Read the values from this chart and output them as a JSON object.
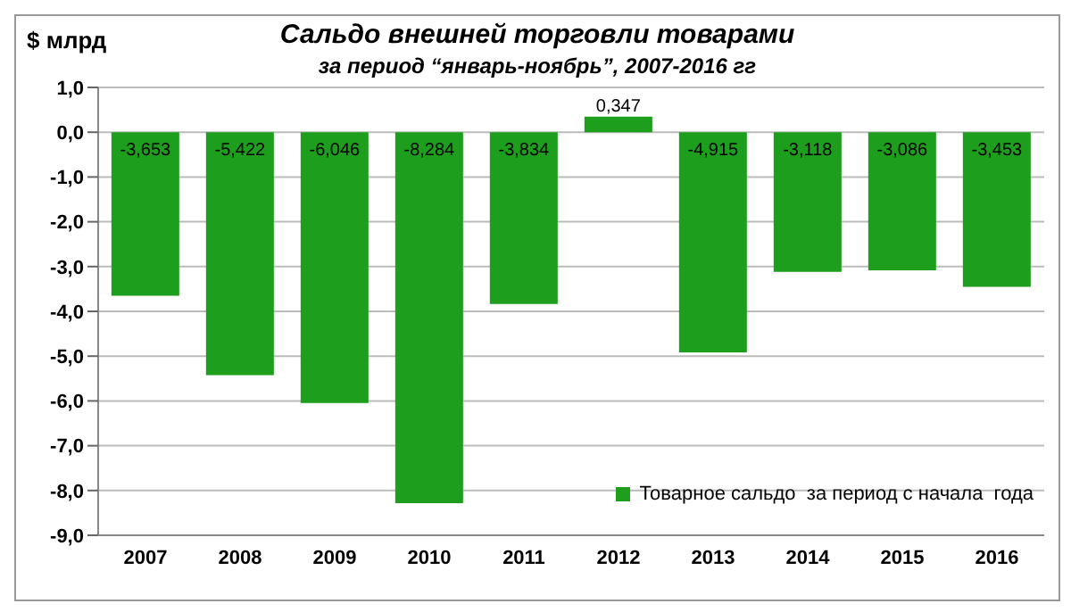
{
  "chart_data": {
    "type": "bar",
    "title": "Сальдо внешней торговли товарами",
    "subtitle": "за период “январь-ноябрь”, 2007-2016 гг",
    "ylabel": "$ млрд",
    "categories": [
      "2007",
      "2008",
      "2009",
      "2010",
      "2011",
      "2012",
      "2013",
      "2014",
      "2015",
      "2016"
    ],
    "series": [
      {
        "name": "Товарное сальдо  за период с начала  года",
        "color": "#1d9e1d",
        "values": [
          -3.653,
          -5.422,
          -6.046,
          -8.284,
          -3.834,
          0.347,
          -4.915,
          -3.118,
          -3.086,
          -3.453
        ],
        "value_labels": [
          "-3,653",
          "-5,422",
          "-6,046",
          "-8,284",
          "-3,834",
          "0,347",
          "-4,915",
          "-3,118",
          "-3,086",
          "-3,453"
        ]
      }
    ],
    "ylim": [
      -9,
      1
    ],
    "yticks": [
      {
        "value": 1,
        "label": "1,0"
      },
      {
        "value": 0,
        "label": "0,0"
      },
      {
        "value": -1,
        "label": "-1,0"
      },
      {
        "value": -2,
        "label": "-2,0"
      },
      {
        "value": -3,
        "label": "-3,0"
      },
      {
        "value": -4,
        "label": "-4,0"
      },
      {
        "value": -5,
        "label": "-5,0"
      },
      {
        "value": -6,
        "label": "-6,0"
      },
      {
        "value": -7,
        "label": "-7,0"
      },
      {
        "value": -8,
        "label": "-8,0"
      },
      {
        "value": -9,
        "label": "-9,0"
      }
    ],
    "grid": "y",
    "legend": "bottom right"
  }
}
